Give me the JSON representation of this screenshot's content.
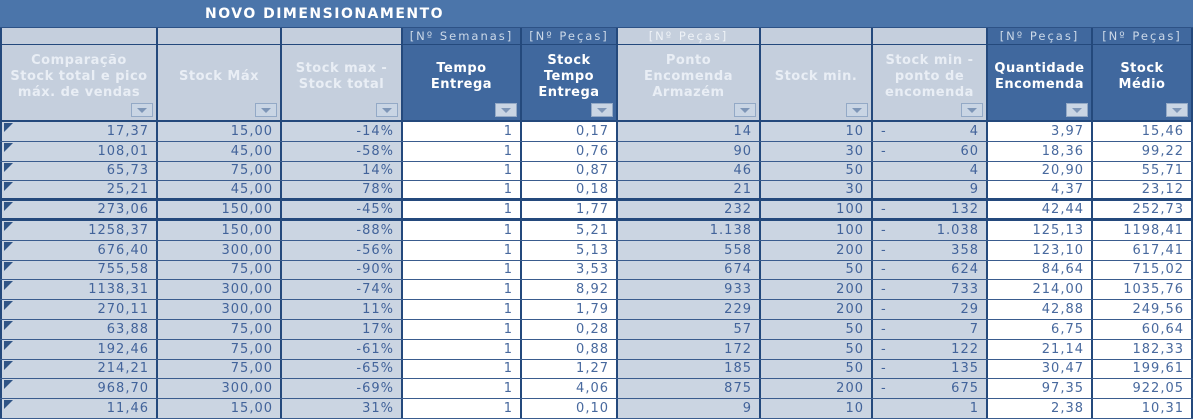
{
  "title": "NOVO DIMENSIONAMENTO",
  "colors": {
    "title_bar": "#4b75aa",
    "dark_header_bg": "#40689e",
    "light_header_bg": "#c5cfdd",
    "light_cell_bg": "#cbd5e2",
    "white_cell_bg": "#ffffff",
    "data_text": "#42639a",
    "grid_border": "#24497c"
  },
  "table": {
    "columns": [
      {
        "unit": "",
        "label": "Comparação Stock total e pico máx. de vendas",
        "header_style": "light",
        "cell_style": "light"
      },
      {
        "unit": "",
        "label": "Stock Máx",
        "header_style": "light",
        "cell_style": "light"
      },
      {
        "unit": "",
        "label": "Stock max - Stock total",
        "header_style": "light",
        "cell_style": "light"
      },
      {
        "unit": "[Nº Semanas]",
        "label": "Tempo Entrega",
        "header_style": "dark",
        "cell_style": "white"
      },
      {
        "unit": "[Nº Peças]",
        "label": "Stock Tempo Entrega",
        "header_style": "dark",
        "cell_style": "white"
      },
      {
        "unit": "[Nº Peças]",
        "label": "Ponto Encomenda Armazém",
        "header_style": "light",
        "cell_style": "light"
      },
      {
        "unit": "",
        "label": "Stock min.",
        "header_style": "light",
        "cell_style": "light"
      },
      {
        "unit": "",
        "label": "Stock min - ponto de encomenda",
        "header_style": "light",
        "cell_style": "light"
      },
      {
        "unit": "[Nº Peças]",
        "label": "Quantidade Encomenda",
        "header_style": "dark",
        "cell_style": "white"
      },
      {
        "unit": "[Nº Peças]",
        "label": "Stock Médio",
        "header_style": "dark",
        "cell_style": "white"
      }
    ],
    "rows": [
      [
        "17,37",
        "15,00",
        "-14%",
        "1",
        "0,17",
        "14",
        "10",
        "-4",
        "3,97",
        "15,46"
      ],
      [
        "108,01",
        "45,00",
        "-58%",
        "1",
        "0,76",
        "90",
        "30",
        "-60",
        "18,36",
        "99,22"
      ],
      [
        "65,73",
        "75,00",
        "14%",
        "1",
        "0,87",
        "46",
        "50",
        "4",
        "20,90",
        "55,71"
      ],
      [
        "25,21",
        "45,00",
        "78%",
        "1",
        "0,18",
        "21",
        "30",
        "9",
        "4,37",
        "23,12"
      ],
      [
        "273,06",
        "150,00",
        "-45%",
        "1",
        "1,77",
        "232",
        "100",
        "-132",
        "42,44",
        "252,73"
      ],
      [
        "1258,37",
        "150,00",
        "-88%",
        "1",
        "5,21",
        "1.138",
        "100",
        "-1.038",
        "125,13",
        "1198,41"
      ],
      [
        "676,40",
        "300,00",
        "-56%",
        "1",
        "5,13",
        "558",
        "200",
        "-358",
        "123,10",
        "617,41"
      ],
      [
        "755,58",
        "75,00",
        "-90%",
        "1",
        "3,53",
        "674",
        "50",
        "-624",
        "84,64",
        "715,02"
      ],
      [
        "1138,31",
        "300,00",
        "-74%",
        "1",
        "8,92",
        "933",
        "200",
        "-733",
        "214,00",
        "1035,76"
      ],
      [
        "270,11",
        "300,00",
        "11%",
        "1",
        "1,79",
        "229",
        "200",
        "-29",
        "42,88",
        "249,56"
      ],
      [
        "63,88",
        "75,00",
        "17%",
        "1",
        "0,28",
        "57",
        "50",
        "-7",
        "6,75",
        "60,64"
      ],
      [
        "192,46",
        "75,00",
        "-61%",
        "1",
        "0,88",
        "172",
        "50",
        "-122",
        "21,14",
        "182,33"
      ],
      [
        "214,21",
        "75,00",
        "-65%",
        "1",
        "1,27",
        "185",
        "50",
        "-135",
        "30,47",
        "199,61"
      ],
      [
        "968,70",
        "300,00",
        "-69%",
        "1",
        "4,06",
        "875",
        "200",
        "-675",
        "97,35",
        "922,05"
      ],
      [
        "11,46",
        "15,00",
        "31%",
        "1",
        "0,10",
        "9",
        "10",
        "1",
        "2,38",
        "10,31"
      ]
    ]
  }
}
